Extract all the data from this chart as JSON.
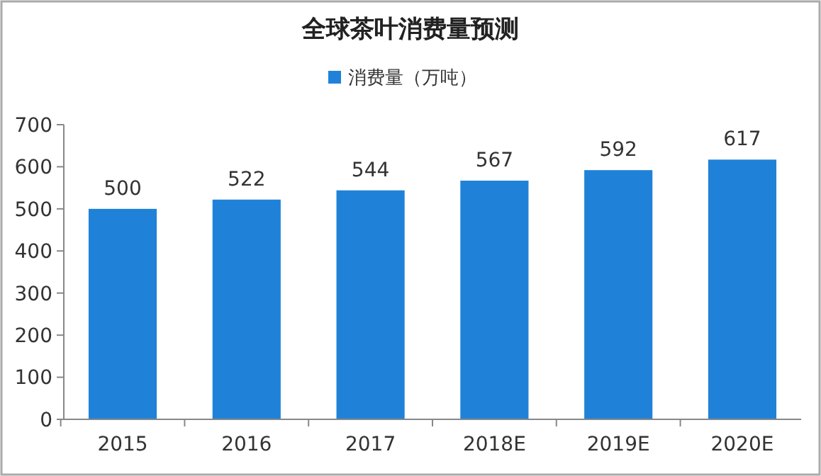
{
  "chart_data": {
    "type": "bar",
    "title": "全球茶叶消费量预测",
    "categories": [
      "2015",
      "2016",
      "2017",
      "2018E",
      "2019E",
      "2020E"
    ],
    "series": [
      {
        "name": "消费量（万吨）",
        "color": "#1f82d8",
        "values": [
          500,
          522,
          544,
          567,
          592,
          617
        ]
      }
    ],
    "ylim": [
      0,
      700
    ],
    "yticks": [
      0,
      100,
      200,
      300,
      400,
      500,
      600,
      700
    ],
    "data_labels": true,
    "legend": "top"
  }
}
